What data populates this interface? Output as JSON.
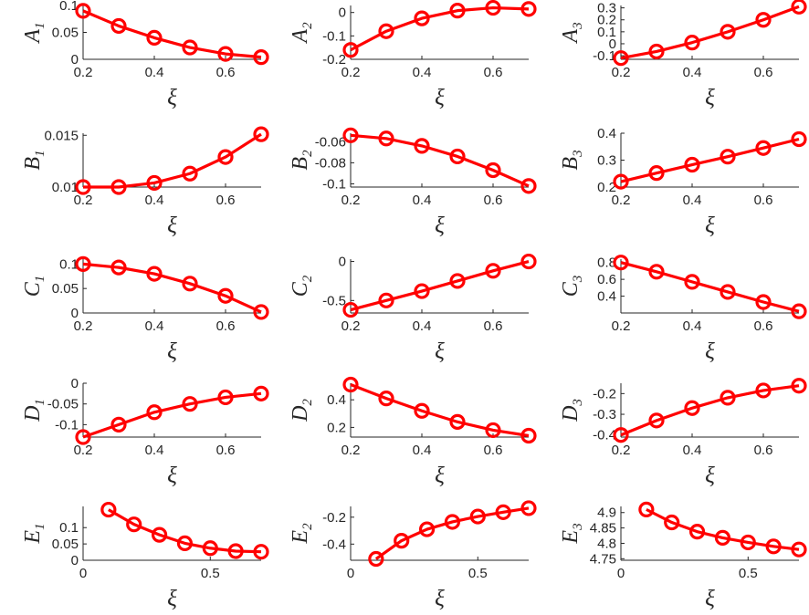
{
  "chart_data": [
    {
      "id": "A1",
      "type": "line",
      "ylabel": "A",
      "ysub": "1",
      "x": [
        0.2,
        0.3,
        0.4,
        0.5,
        0.6,
        0.7
      ],
      "values": [
        0.09,
        0.062,
        0.04,
        0.022,
        0.01,
        0.004
      ],
      "xlim": [
        0.2,
        0.7
      ],
      "ylim": [
        0,
        0.1
      ],
      "xticks": [
        0.2,
        0.4,
        0.6
      ],
      "yticks": [
        0,
        0.05,
        0.1
      ],
      "xtick_labels": [
        "0.2",
        "0.4",
        "0.6"
      ],
      "ytick_labels": [
        "0",
        "0.05",
        "0.1"
      ],
      "xlabel": "ξ"
    },
    {
      "id": "A2",
      "type": "line",
      "ylabel": "A",
      "ysub": "2",
      "x": [
        0.2,
        0.3,
        0.4,
        0.5,
        0.6,
        0.7
      ],
      "values": [
        -0.16,
        -0.08,
        -0.025,
        0.008,
        0.02,
        0.015
      ],
      "xlim": [
        0.2,
        0.7
      ],
      "ylim": [
        -0.2,
        0.03
      ],
      "xticks": [
        0.2,
        0.4,
        0.6
      ],
      "yticks": [
        -0.2,
        -0.1,
        0
      ],
      "xtick_labels": [
        "0.2",
        "0.4",
        "0.6"
      ],
      "ytick_labels": [
        "-0.2",
        "-0.1",
        "0"
      ],
      "xlabel": "ξ"
    },
    {
      "id": "A3",
      "type": "line",
      "ylabel": "A",
      "ysub": "3",
      "x": [
        0.2,
        0.3,
        0.4,
        0.5,
        0.6,
        0.7
      ],
      "values": [
        -0.12,
        -0.065,
        0.01,
        0.1,
        0.2,
        0.31
      ],
      "xlim": [
        0.2,
        0.7
      ],
      "ylim": [
        -0.13,
        0.32
      ],
      "xticks": [
        0.2,
        0.4,
        0.6
      ],
      "yticks": [
        -0.1,
        0,
        0.1,
        0.2,
        0.3
      ],
      "xtick_labels": [
        "0.2",
        "0.4",
        "0.6"
      ],
      "ytick_labels": [
        "-0.1",
        "0",
        "0.1",
        "0.2",
        "0.3"
      ],
      "xlabel": "ξ"
    },
    {
      "id": "B1",
      "type": "line",
      "ylabel": "B",
      "ysub": "1",
      "x": [
        0.2,
        0.3,
        0.4,
        0.5,
        0.6,
        0.7
      ],
      "values": [
        0.01,
        0.01,
        0.0104,
        0.0113,
        0.0129,
        0.0151
      ],
      "xlim": [
        0.2,
        0.7
      ],
      "ylim": [
        0.01,
        0.0152
      ],
      "xticks": [
        0.2,
        0.4,
        0.6
      ],
      "yticks": [
        0.01,
        0.015
      ],
      "xtick_labels": [
        "0.2",
        "0.4",
        "0.6"
      ],
      "ytick_labels": [
        "0.01",
        "0.015"
      ],
      "xlabel": "ξ"
    },
    {
      "id": "B2",
      "type": "line",
      "ylabel": "B",
      "ysub": "2",
      "x": [
        0.2,
        0.3,
        0.4,
        0.5,
        0.6,
        0.7
      ],
      "values": [
        -0.054,
        -0.057,
        -0.064,
        -0.074,
        -0.087,
        -0.102
      ],
      "xlim": [
        0.2,
        0.7
      ],
      "ylim": [
        -0.103,
        -0.052
      ],
      "xticks": [
        0.2,
        0.4,
        0.6
      ],
      "yticks": [
        -0.1,
        -0.08,
        -0.06
      ],
      "xtick_labels": [
        "0.2",
        "0.4",
        "0.6"
      ],
      "ytick_labels": [
        "-0.1",
        "-0.08",
        "-0.06"
      ],
      "xlabel": "ξ"
    },
    {
      "id": "B3",
      "type": "line",
      "ylabel": "B",
      "ysub": "3",
      "x": [
        0.2,
        0.3,
        0.4,
        0.5,
        0.6,
        0.7
      ],
      "values": [
        0.22,
        0.252,
        0.283,
        0.313,
        0.345,
        0.378
      ],
      "xlim": [
        0.2,
        0.7
      ],
      "ylim": [
        0.2,
        0.4
      ],
      "xticks": [
        0.2,
        0.4,
        0.6
      ],
      "yticks": [
        0.2,
        0.3,
        0.4
      ],
      "xtick_labels": [
        "0.2",
        "0.4",
        "0.6"
      ],
      "ytick_labels": [
        "0.2",
        "0.3",
        "0.4"
      ],
      "xlabel": "ξ"
    },
    {
      "id": "C1",
      "type": "line",
      "ylabel": "C",
      "ysub": "1",
      "x": [
        0.2,
        0.3,
        0.4,
        0.5,
        0.6,
        0.7
      ],
      "values": [
        0.1,
        0.093,
        0.08,
        0.06,
        0.035,
        0.002
      ],
      "xlim": [
        0.2,
        0.7
      ],
      "ylim": [
        0,
        0.11
      ],
      "xticks": [
        0.2,
        0.4,
        0.6
      ],
      "yticks": [
        0,
        0.05,
        0.1
      ],
      "xtick_labels": [
        "0.2",
        "0.4",
        "0.6"
      ],
      "ytick_labels": [
        "0",
        "0.05",
        "0.1"
      ],
      "xlabel": "ξ"
    },
    {
      "id": "C2",
      "type": "line",
      "ylabel": "C",
      "ysub": "2",
      "x": [
        0.2,
        0.3,
        0.4,
        0.5,
        0.6,
        0.7
      ],
      "values": [
        -0.62,
        -0.5,
        -0.38,
        -0.25,
        -0.12,
        0
      ],
      "xlim": [
        0.2,
        0.7
      ],
      "ylim": [
        -0.66,
        0.03
      ],
      "xticks": [
        0.2,
        0.4,
        0.6
      ],
      "yticks": [
        -0.5,
        0
      ],
      "xtick_labels": [
        "0.2",
        "0.4",
        "0.6"
      ],
      "ytick_labels": [
        "-0.5",
        "0"
      ],
      "xlabel": "ξ"
    },
    {
      "id": "C3",
      "type": "line",
      "ylabel": "C",
      "ysub": "3",
      "x": [
        0.2,
        0.3,
        0.4,
        0.5,
        0.6,
        0.7
      ],
      "values": [
        0.8,
        0.69,
        0.57,
        0.45,
        0.33,
        0.22
      ],
      "xlim": [
        0.2,
        0.7
      ],
      "ylim": [
        0.2,
        0.84
      ],
      "xticks": [
        0.2,
        0.4,
        0.6
      ],
      "yticks": [
        0.4,
        0.6,
        0.8
      ],
      "xtick_labels": [
        "0.2",
        "0.4",
        "0.6"
      ],
      "ytick_labels": [
        "0.4",
        "0.6",
        "0.8"
      ],
      "xlabel": "ξ"
    },
    {
      "id": "D1",
      "type": "line",
      "ylabel": "D",
      "ysub": "1",
      "x": [
        0.2,
        0.3,
        0.4,
        0.5,
        0.6,
        0.7
      ],
      "values": [
        -0.13,
        -0.1,
        -0.07,
        -0.05,
        -0.034,
        -0.025
      ],
      "xlim": [
        0.2,
        0.7
      ],
      "ylim": [
        -0.13,
        0
      ],
      "xticks": [
        0.2,
        0.4,
        0.6
      ],
      "yticks": [
        -0.1,
        -0.05,
        0
      ],
      "xtick_labels": [
        "0.2",
        "0.4",
        "0.6"
      ],
      "ytick_labels": [
        "-0.1",
        "-0.05",
        "0"
      ],
      "xlabel": "ξ"
    },
    {
      "id": "D2",
      "type": "line",
      "ylabel": "D",
      "ysub": "2",
      "x": [
        0.2,
        0.3,
        0.4,
        0.5,
        0.6,
        0.7
      ],
      "values": [
        0.51,
        0.41,
        0.32,
        0.24,
        0.18,
        0.14
      ],
      "xlim": [
        0.2,
        0.7
      ],
      "ylim": [
        0.13,
        0.52
      ],
      "xticks": [
        0.2,
        0.4,
        0.6
      ],
      "yticks": [
        0.2,
        0.4
      ],
      "xtick_labels": [
        "0.2",
        "0.4",
        "0.6"
      ],
      "ytick_labels": [
        "0.2",
        "0.4"
      ],
      "xlabel": "ξ"
    },
    {
      "id": "D3",
      "type": "line",
      "ylabel": "D",
      "ysub": "3",
      "x": [
        0.2,
        0.3,
        0.4,
        0.5,
        0.6,
        0.7
      ],
      "values": [
        -0.4,
        -0.33,
        -0.27,
        -0.22,
        -0.185,
        -0.162
      ],
      "xlim": [
        0.2,
        0.7
      ],
      "ylim": [
        -0.41,
        -0.15
      ],
      "xticks": [
        0.2,
        0.4,
        0.6
      ],
      "yticks": [
        -0.4,
        -0.3,
        -0.2
      ],
      "xtick_labels": [
        "0.2",
        "0.4",
        "0.6"
      ],
      "ytick_labels": [
        "-0.4",
        "-0.3",
        "-0.2"
      ],
      "xlabel": "ξ"
    },
    {
      "id": "E1",
      "type": "line",
      "ylabel": "E",
      "ysub": "1",
      "x": [
        0.1,
        0.2,
        0.3,
        0.4,
        0.5,
        0.6,
        0.7
      ],
      "values": [
        0.155,
        0.11,
        0.078,
        0.052,
        0.037,
        0.028,
        0.026
      ],
      "xlim": [
        0,
        0.7
      ],
      "ylim": [
        0,
        0.165
      ],
      "xticks": [
        0,
        0.5
      ],
      "yticks": [
        0,
        0.05,
        0.1
      ],
      "xtick_labels": [
        "0",
        "0.5"
      ],
      "ytick_labels": [
        "0",
        "0.05",
        "0.1"
      ],
      "xlabel": "ξ"
    },
    {
      "id": "E2",
      "type": "line",
      "ylabel": "E",
      "ysub": "2",
      "x": [
        0.1,
        0.2,
        0.3,
        0.4,
        0.5,
        0.6,
        0.7
      ],
      "values": [
        -0.51,
        -0.375,
        -0.29,
        -0.235,
        -0.195,
        -0.163,
        -0.133
      ],
      "xlim": [
        0,
        0.7
      ],
      "ylim": [
        -0.52,
        -0.12
      ],
      "xticks": [
        0,
        0.5
      ],
      "yticks": [
        -0.4,
        -0.2
      ],
      "xtick_labels": [
        "0",
        "0.5"
      ],
      "ytick_labels": [
        "-0.4",
        "-0.2"
      ],
      "xlabel": "ξ"
    },
    {
      "id": "E3",
      "type": "line",
      "ylabel": "E",
      "ysub": "3",
      "x": [
        0.1,
        0.2,
        0.3,
        0.4,
        0.5,
        0.6,
        0.7
      ],
      "values": [
        4.91,
        4.868,
        4.838,
        4.818,
        4.803,
        4.79,
        4.78
      ],
      "xlim": [
        0,
        0.7
      ],
      "ylim": [
        4.745,
        4.92
      ],
      "xticks": [
        0,
        0.5
      ],
      "yticks": [
        4.75,
        4.8,
        4.85,
        4.9
      ],
      "xtick_labels": [
        "0",
        "0.5"
      ],
      "ytick_labels": [
        "4.75",
        "4.8",
        "4.85",
        "4.9"
      ],
      "xlabel": "ξ"
    }
  ],
  "colors": {
    "series": "#ff0000",
    "axis": "#262626"
  }
}
